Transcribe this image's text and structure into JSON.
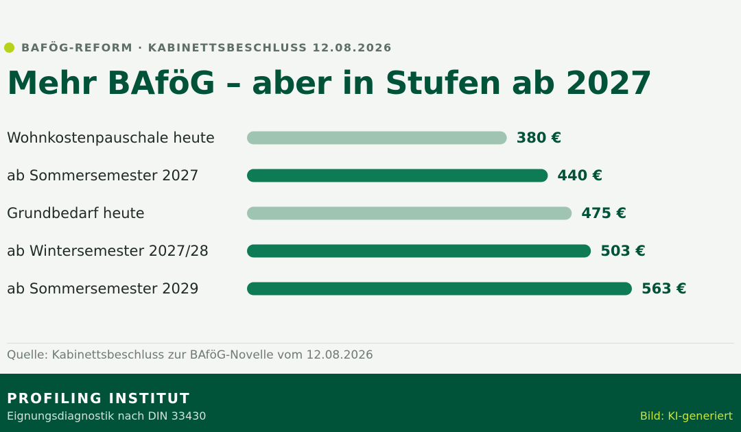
{
  "header": {
    "kicker": "BAFÖG-REFORM · KABINETTSBESCHLUSS 12.08.2026",
    "title": "Mehr BAföG – aber in Stufen ab 2027"
  },
  "chart_data": {
    "type": "bar",
    "orientation": "horizontal",
    "title": "Mehr BAföG – aber in Stufen ab 2027",
    "categories": [
      "Wohnkostenpauschale heute",
      "ab Sommersemester 2027",
      "Grundbedarf heute",
      "ab Wintersemester 2027/28",
      "ab Sommersemester 2029"
    ],
    "values": [
      380,
      440,
      475,
      503,
      563
    ],
    "value_labels": [
      "380 €",
      "440 €",
      "475 €",
      "503 €",
      "563 €"
    ],
    "status": [
      "current",
      "planned",
      "current",
      "planned",
      "planned"
    ],
    "unit": "€",
    "xlim": [
      0,
      563
    ],
    "grid": false,
    "legend": "none",
    "colors": {
      "current": "#9fc4b1",
      "planned": "#0f7a56"
    }
  },
  "source": "Quelle: Kabinettsbeschluss zur BAföG-Novelle vom 12.08.2026",
  "footer": {
    "brand": "PROFILING INSTITUT",
    "brand_sub": "Eignungsdiagnostik nach DIN 33430",
    "credit": "Bild: KI-generiert"
  },
  "icons": {
    "kicker_marker": "dot-icon"
  }
}
